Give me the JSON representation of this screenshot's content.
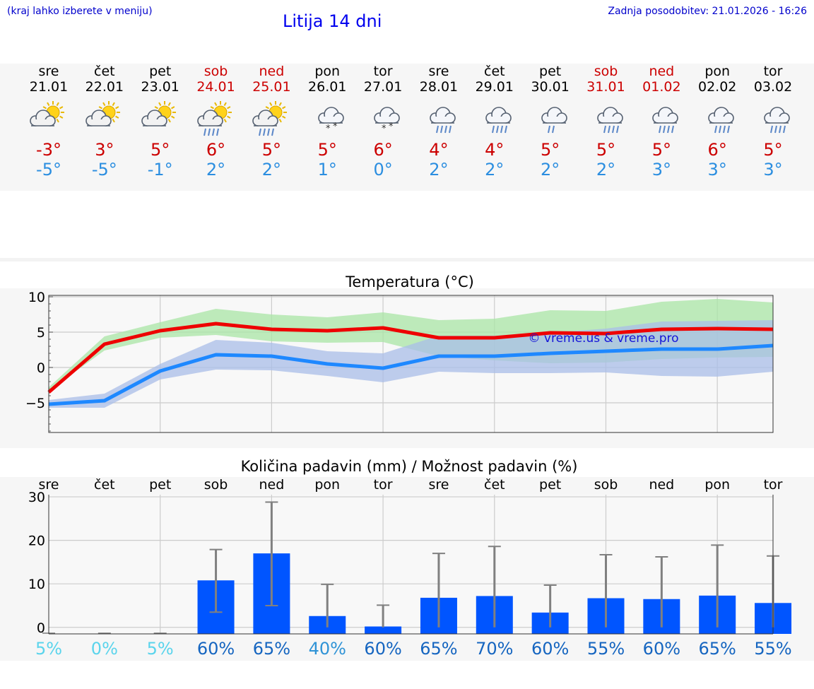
{
  "header": {
    "note_left": "(kraj lahko izberete v meniju)",
    "title": "Litija 14 dni",
    "note_right": "Zadnja posodobitev: 21.01.2026 - 16:26"
  },
  "days": [
    {
      "day": "sre",
      "date": "21.01",
      "weekend": false,
      "icon": "sun-cloud-icon",
      "tmax": "-3°",
      "tmin": "-5°"
    },
    {
      "day": "čet",
      "date": "22.01",
      "weekend": false,
      "icon": "sun-cloud-icon",
      "tmax": "3°",
      "tmin": "-5°"
    },
    {
      "day": "pet",
      "date": "23.01",
      "weekend": false,
      "icon": "sun-cloud-icon",
      "tmax": "5°",
      "tmin": "-1°"
    },
    {
      "day": "sob",
      "date": "24.01",
      "weekend": true,
      "icon": "sun-cloud-rain-icon",
      "tmax": "6°",
      "tmin": "2°"
    },
    {
      "day": "ned",
      "date": "25.01",
      "weekend": true,
      "icon": "sun-cloud-rain-icon",
      "tmax": "5°",
      "tmin": "2°"
    },
    {
      "day": "pon",
      "date": "26.01",
      "weekend": false,
      "icon": "cloud-snow-icon",
      "tmax": "5°",
      "tmin": "1°"
    },
    {
      "day": "tor",
      "date": "27.01",
      "weekend": false,
      "icon": "cloud-snow-icon",
      "tmax": "6°",
      "tmin": "0°"
    },
    {
      "day": "sre",
      "date": "28.01",
      "weekend": false,
      "icon": "cloud-rain-icon",
      "tmax": "4°",
      "tmin": "2°"
    },
    {
      "day": "čet",
      "date": "29.01",
      "weekend": false,
      "icon": "cloud-rain-icon",
      "tmax": "4°",
      "tmin": "2°"
    },
    {
      "day": "pet",
      "date": "30.01",
      "weekend": false,
      "icon": "cloud-light-rain-icon",
      "tmax": "5°",
      "tmin": "2°"
    },
    {
      "day": "sob",
      "date": "31.01",
      "weekend": true,
      "icon": "cloud-rain-icon",
      "tmax": "5°",
      "tmin": "2°"
    },
    {
      "day": "ned",
      "date": "01.02",
      "weekend": true,
      "icon": "cloud-rain-icon",
      "tmax": "5°",
      "tmin": "3°"
    },
    {
      "day": "pon",
      "date": "02.02",
      "weekend": false,
      "icon": "cloud-rain-icon",
      "tmax": "6°",
      "tmin": "3°"
    },
    {
      "day": "tor",
      "date": "03.02",
      "weekend": false,
      "icon": "cloud-rain-icon",
      "tmax": "5°",
      "tmin": "3°"
    }
  ],
  "chart_data": [
    {
      "type": "line",
      "title": "Temperatura (°C)",
      "ylim": [
        -9.2,
        10.2
      ],
      "yticks": [
        "10",
        "5",
        "0",
        "−5"
      ],
      "ytick_values": [
        10,
        5,
        0,
        -5
      ],
      "watermark": "© vreme.us & vreme.pro",
      "x": [
        0,
        1,
        2,
        3,
        4,
        5,
        6,
        7,
        8,
        9,
        10,
        11,
        12,
        13
      ],
      "series": [
        {
          "name": "max",
          "color": "#ee0000",
          "values": [
            -3.5,
            3.3,
            5.2,
            6.2,
            5.4,
            5.2,
            5.6,
            4.2,
            4.2,
            4.9,
            4.8,
            5.4,
            5.5,
            5.4
          ]
        },
        {
          "name": "min",
          "color": "#1e88ff",
          "values": [
            -5.2,
            -4.7,
            -0.5,
            1.8,
            1.6,
            0.5,
            -0.1,
            1.6,
            1.6,
            2.0,
            2.3,
            2.6,
            2.6,
            3.1
          ]
        }
      ],
      "bands": [
        {
          "name": "max-range",
          "color": "#a9e5a5",
          "low": [
            -3.3,
            2.4,
            4.2,
            4.6,
            3.7,
            3.5,
            3.6,
            1.6,
            1.0,
            0.6,
            0.7,
            1.2,
            1.4,
            1.5
          ],
          "high": [
            -2.8,
            4.4,
            6.4,
            8.3,
            7.5,
            7.1,
            7.8,
            6.7,
            6.9,
            8.1,
            8.0,
            9.3,
            9.7,
            9.2
          ]
        },
        {
          "name": "min-range",
          "color": "#a9bde8",
          "low": [
            -5.7,
            -5.7,
            -1.7,
            -0.3,
            -0.4,
            -1.2,
            -2.1,
            -0.6,
            -0.8,
            -0.8,
            -0.7,
            -1.2,
            -1.3,
            -0.6
          ],
          "high": [
            -4.6,
            -3.7,
            0.5,
            3.9,
            3.5,
            2.3,
            2.0,
            4.5,
            4.5,
            4.9,
            5.5,
            6.5,
            6.6,
            6.7
          ]
        }
      ]
    },
    {
      "type": "bar",
      "title": "Količina padavin (mm) / Možnost padavin (%)",
      "categories": [
        "sre",
        "čet",
        "pet",
        "sob",
        "ned",
        "pon",
        "tor",
        "sre",
        "čet",
        "pet",
        "sob",
        "ned",
        "pon",
        "tor"
      ],
      "ylim": [
        -1.5,
        30.5
      ],
      "yticks": [
        "30",
        "20",
        "10",
        "0"
      ],
      "ytick_values": [
        30,
        20,
        10,
        0
      ],
      "bar_color": "#0055ff",
      "values": [
        0,
        0,
        0,
        10.8,
        17.0,
        2.6,
        0.2,
        6.8,
        7.2,
        3.4,
        6.7,
        6.5,
        7.3,
        5.6
      ],
      "err_low": [
        0,
        0,
        0,
        3.5,
        5.0,
        0,
        0,
        0,
        0,
        0,
        0,
        0,
        0,
        0
      ],
      "err_high": [
        0,
        0,
        0,
        17.9,
        28.8,
        9.9,
        5.1,
        17.0,
        18.6,
        9.7,
        16.7,
        16.2,
        18.9,
        16.4
      ],
      "probabilities": [
        "5%",
        "0%",
        "5%",
        "60%",
        "65%",
        "40%",
        "60%",
        "65%",
        "70%",
        "60%",
        "55%",
        "60%",
        "65%",
        "55%"
      ],
      "prob_colors": [
        "#5ad4ec",
        "#5ad4ec",
        "#5ad4ec",
        "#1565c0",
        "#1565c0",
        "#2f93d6",
        "#1565c0",
        "#1565c0",
        "#1565c0",
        "#1565c0",
        "#1565c0",
        "#1565c0",
        "#1565c0",
        "#1565c0"
      ]
    }
  ]
}
